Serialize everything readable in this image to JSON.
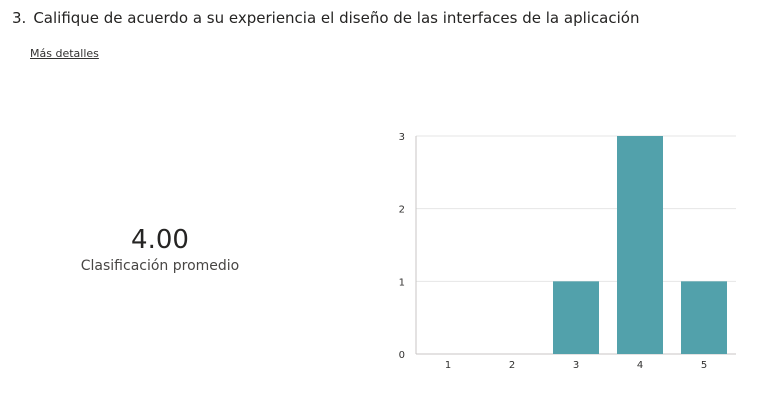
{
  "question": {
    "number": "3.",
    "text": "Califique de acuerdo a su experiencia el diseño de las interfaces de la aplicación"
  },
  "details_link": "Más detalles",
  "summary": {
    "value": "4.00",
    "label": "Clasificación promedio"
  },
  "colors": {
    "bar": "#52a1ab",
    "grid": "#e6e6e6",
    "axis": "#c8c6c4"
  },
  "chart_data": {
    "type": "bar",
    "categories": [
      "1",
      "2",
      "3",
      "4",
      "5"
    ],
    "values": [
      0,
      0,
      1,
      3,
      1
    ],
    "ylim": [
      0,
      3
    ],
    "yticks": [
      "0",
      "1",
      "2",
      "3"
    ],
    "grid": true
  }
}
